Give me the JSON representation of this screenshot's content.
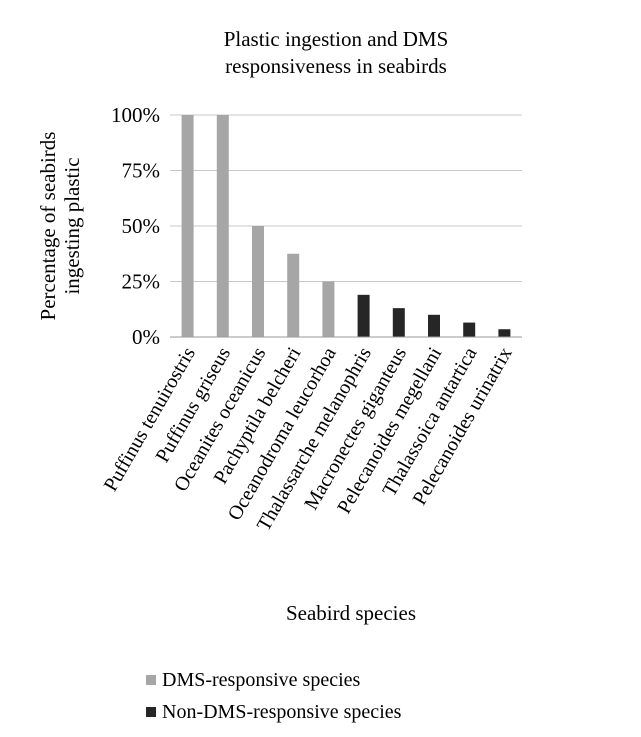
{
  "chart_data": {
    "type": "bar",
    "title": "Plastic ingestion and DMS responsiveness in seabirds",
    "title_lines": [
      "Plastic ingestion and DMS",
      "responsiveness in seabirds"
    ],
    "xlabel": "Seabird species",
    "ylabel": "Percentage of seabirds ingesting plastic",
    "ylabel_lines": [
      "Percentage of seabirds",
      "ingesting plastic"
    ],
    "ylim": [
      0,
      100
    ],
    "yticks": [
      0,
      25,
      50,
      75,
      100
    ],
    "ytick_labels": [
      "0%",
      "25%",
      "50%",
      "75%",
      "100%"
    ],
    "grid": true,
    "legend_position": "bottom-left",
    "categories": [
      "Puffinus tenuirostris",
      "Puffinus griseus",
      "Oceanites oceanicus",
      "Pachyptila belcheri",
      "Oceanodroma leucorhoa",
      "Thalassarche melanophris",
      "Macronectes giganteus",
      "Pelecanoides megellani",
      "Thalassoica antartica",
      "Pelecanoides urinatrix"
    ],
    "series": [
      {
        "name": "DMS-responsive species",
        "color": "#a6a6a6",
        "values": [
          100,
          100,
          50,
          37.5,
          25,
          null,
          null,
          null,
          null,
          null
        ]
      },
      {
        "name": "Non-DMS-responsive species",
        "color": "#262626",
        "values": [
          null,
          null,
          null,
          null,
          0,
          19,
          13,
          10,
          6.5,
          3.5
        ]
      }
    ]
  }
}
